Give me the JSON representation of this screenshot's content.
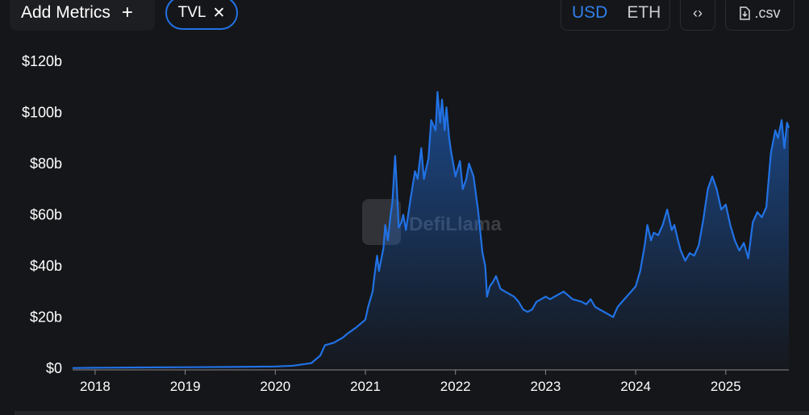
{
  "toolbar": {
    "add_metrics_label": "Add Metrics",
    "add_metrics_icon": "plus-icon",
    "metric_pill_label": "TVL",
    "metric_pill_icon": "close-icon",
    "currency_options": [
      "USD",
      "ETH"
    ],
    "currency_selected": "USD",
    "embed_icon": "code-brackets-icon",
    "csv_label": ".csv",
    "csv_icon": "file-download-icon",
    "accent_color": "#2f80ed"
  },
  "watermark": {
    "text": "DefiLlama"
  },
  "chart_data": {
    "type": "area",
    "y_tick_labels": [
      "$0",
      "$20b",
      "$40b",
      "$60b",
      "$80b",
      "$100b",
      "$120b"
    ],
    "y_ticks": [
      0,
      20,
      40,
      60,
      80,
      100,
      120
    ],
    "x_tick_labels": [
      "2018",
      "2019",
      "2020",
      "2021",
      "2022",
      "2023",
      "2024",
      "2025"
    ],
    "x_ticks": [
      2018,
      2019,
      2020,
      2021,
      2022,
      2023,
      2024,
      2025
    ],
    "xlim": [
      2017.75,
      2025.7
    ],
    "ylim": [
      0,
      120
    ],
    "y_unit": "billions USD",
    "grid": false,
    "line_color": "#2172e5",
    "series": [
      {
        "x": [
          2017.75,
          2018.0,
          2018.5,
          2019.0,
          2019.5,
          2020.0,
          2020.2,
          2020.4,
          2020.5,
          2020.55,
          2020.65,
          2020.7,
          2020.75,
          2020.8,
          2020.9,
          2021.0,
          2021.03,
          2021.08,
          2021.1,
          2021.13,
          2021.15,
          2021.2,
          2021.22,
          2021.25,
          2021.28,
          2021.3,
          2021.33,
          2021.35,
          2021.37,
          2021.4,
          2021.42,
          2021.45,
          2021.5,
          2021.55,
          2021.58,
          2021.62,
          2021.65,
          2021.7,
          2021.73,
          2021.78,
          2021.8,
          2021.83,
          2021.85,
          2021.88,
          2021.9,
          2021.93,
          2021.95,
          2022.0,
          2022.05,
          2022.08,
          2022.12,
          2022.15,
          2022.2,
          2022.25,
          2022.3,
          2022.33,
          2022.35,
          2022.38,
          2022.42,
          2022.45,
          2022.5,
          2022.55,
          2022.6,
          2022.65,
          2022.7,
          2022.75,
          2022.8,
          2022.85,
          2022.9,
          2022.95,
          2023.0,
          2023.05,
          2023.1,
          2023.2,
          2023.3,
          2023.4,
          2023.45,
          2023.5,
          2023.55,
          2023.6,
          2023.7,
          2023.75,
          2023.8,
          2023.85,
          2023.9,
          2023.95,
          2024.0,
          2024.05,
          2024.1,
          2024.13,
          2024.17,
          2024.2,
          2024.25,
          2024.3,
          2024.35,
          2024.4,
          2024.43,
          2024.47,
          2024.5,
          2024.55,
          2024.6,
          2024.65,
          2024.7,
          2024.75,
          2024.8,
          2024.85,
          2024.9,
          2024.95,
          2025.0,
          2025.05,
          2025.1,
          2025.15,
          2025.2,
          2025.25,
          2025.3,
          2025.35,
          2025.4,
          2025.45,
          2025.5,
          2025.55,
          2025.58,
          2025.62,
          2025.65,
          2025.68,
          2025.7
        ],
        "y": [
          0.1,
          0.2,
          0.3,
          0.4,
          0.5,
          0.7,
          1.0,
          2.0,
          5.0,
          9.0,
          10.0,
          11.0,
          12.0,
          13.5,
          16.0,
          19.0,
          24.0,
          30.0,
          36.0,
          44.0,
          38.0,
          47.0,
          56.0,
          50.0,
          60.0,
          65.0,
          83.0,
          70.0,
          55.0,
          57.0,
          60.0,
          54.0,
          66.0,
          77.0,
          74.0,
          86.0,
          74.0,
          82.0,
          97.0,
          93.0,
          108.0,
          96.0,
          105.0,
          93.0,
          102.0,
          90.0,
          85.0,
          75.0,
          81.0,
          70.0,
          74.0,
          80.0,
          75.0,
          62.0,
          45.0,
          40.0,
          28.0,
          32.0,
          34.0,
          36.0,
          31.0,
          30.0,
          29.0,
          28.0,
          26.0,
          23.0,
          22.0,
          23.0,
          26.0,
          27.0,
          28.0,
          27.0,
          28.0,
          30.0,
          27.0,
          26.0,
          25.0,
          27.0,
          24.0,
          23.0,
          21.0,
          20.0,
          24.0,
          26.0,
          28.0,
          30.0,
          32.0,
          38.0,
          48.0,
          56.0,
          50.0,
          53.0,
          52.0,
          56.0,
          62.0,
          54.0,
          56.0,
          50.0,
          46.0,
          42.0,
          45.0,
          44.0,
          48.0,
          58.0,
          70.0,
          75.0,
          70.0,
          62.0,
          64.0,
          56.0,
          50.0,
          46.0,
          49.0,
          43.0,
          57.0,
          61.0,
          59.0,
          63.0,
          84.0,
          93.0,
          90.0,
          97.0,
          86.0,
          96.0,
          94.0
        ]
      }
    ]
  }
}
